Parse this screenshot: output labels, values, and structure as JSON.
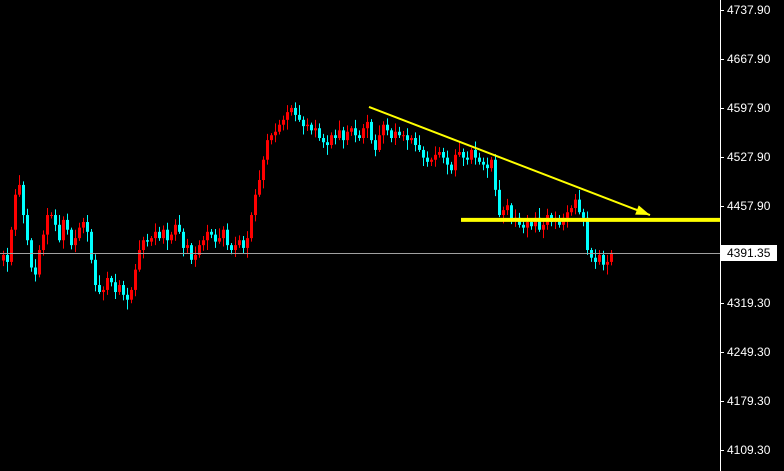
{
  "chart_data": {
    "type": "candlestick",
    "colors": {
      "background": "#000000",
      "up": "#ff0000",
      "down": "#00ffff",
      "trendline": "#ffff00",
      "price_line": "#a0a0a0",
      "axis": "#ffffff"
    },
    "ylim": [
      4079.3,
      4752.2
    ],
    "y_ticks": [
      "4737.90",
      "4667.90",
      "4597.90",
      "4527.90",
      "4457.90",
      "4319.30",
      "4249.30",
      "4179.30",
      "4109.30"
    ],
    "current_price": "4391.35",
    "candles": [
      [
        4380,
        4394,
        4372,
        4388
      ],
      [
        4388,
        4398,
        4364,
        4378
      ],
      [
        4378,
        4428,
        4373,
        4424
      ],
      [
        4424,
        4482,
        4415,
        4474
      ],
      [
        4474,
        4502,
        4471,
        4488
      ],
      [
        4488,
        4493,
        4433,
        4445
      ],
      [
        4445,
        4454,
        4402,
        4409
      ],
      [
        4409,
        4412,
        4364,
        4370
      ],
      [
        4370,
        4382,
        4350,
        4360
      ],
      [
        4360,
        4402,
        4356,
        4395
      ],
      [
        4395,
        4423,
        4387,
        4417
      ],
      [
        4417,
        4455,
        4403,
        4445
      ],
      [
        4445,
        4449,
        4440,
        4445
      ],
      [
        4445,
        4453,
        4422,
        4431
      ],
      [
        4431,
        4445,
        4406,
        4409
      ],
      [
        4409,
        4443,
        4397,
        4438
      ],
      [
        4438,
        4447,
        4417,
        4424
      ],
      [
        4424,
        4427,
        4396,
        4402
      ],
      [
        4402,
        4424,
        4392,
        4412
      ],
      [
        4412,
        4434,
        4408,
        4427
      ],
      [
        4427,
        4441,
        4419,
        4435
      ],
      [
        4435,
        4445,
        4407,
        4421
      ],
      [
        4421,
        4425,
        4376,
        4381
      ],
      [
        4381,
        4389,
        4336,
        4345
      ],
      [
        4345,
        4359,
        4332,
        4335
      ],
      [
        4335,
        4343,
        4323,
        4338
      ],
      [
        4338,
        4364,
        4331,
        4355
      ],
      [
        4355,
        4358,
        4343,
        4349
      ],
      [
        4349,
        4361,
        4325,
        4335
      ],
      [
        4335,
        4352,
        4331,
        4345
      ],
      [
        4345,
        4351,
        4323,
        4331
      ],
      [
        4331,
        4341,
        4310,
        4324
      ],
      [
        4324,
        4342,
        4319,
        4338
      ],
      [
        4338,
        4375,
        4329,
        4367
      ],
      [
        4367,
        4409,
        4364,
        4395
      ],
      [
        4395,
        4414,
        4383,
        4409
      ],
      [
        4409,
        4418,
        4400,
        4407
      ],
      [
        4407,
        4415,
        4401,
        4412
      ],
      [
        4412,
        4433,
        4402,
        4421
      ],
      [
        4421,
        4428,
        4408,
        4412
      ],
      [
        4412,
        4430,
        4404,
        4424
      ],
      [
        4424,
        4434,
        4395,
        4409
      ],
      [
        4409,
        4421,
        4404,
        4417
      ],
      [
        4417,
        4439,
        4408,
        4431
      ],
      [
        4431,
        4445,
        4418,
        4421
      ],
      [
        4421,
        4426,
        4386,
        4398
      ],
      [
        4398,
        4411,
        4391,
        4402
      ],
      [
        4402,
        4405,
        4375,
        4381
      ],
      [
        4381,
        4400,
        4371,
        4388
      ],
      [
        4388,
        4409,
        4384,
        4402
      ],
      [
        4402,
        4415,
        4394,
        4409
      ],
      [
        4409,
        4431,
        4395,
        4421
      ],
      [
        4421,
        4425,
        4412,
        4417
      ],
      [
        4417,
        4425,
        4398,
        4407
      ],
      [
        4407,
        4426,
        4404,
        4412
      ],
      [
        4412,
        4429,
        4400,
        4424
      ],
      [
        4424,
        4433,
        4395,
        4402
      ],
      [
        4402,
        4405,
        4389,
        4395
      ],
      [
        4395,
        4414,
        4385,
        4402
      ],
      [
        4402,
        4416,
        4398,
        4409
      ],
      [
        4409,
        4415,
        4390,
        4398
      ],
      [
        4398,
        4422,
        4384,
        4412
      ],
      [
        4412,
        4449,
        4407,
        4445
      ],
      [
        4445,
        4482,
        4436,
        4474
      ],
      [
        4474,
        4509,
        4471,
        4495
      ],
      [
        4495,
        4529,
        4483,
        4524
      ],
      [
        4524,
        4561,
        4517,
        4552
      ],
      [
        4552,
        4562,
        4546,
        4559
      ],
      [
        4559,
        4576,
        4549,
        4564
      ],
      [
        4564,
        4581,
        4560,
        4574
      ],
      [
        4574,
        4587,
        4566,
        4581
      ],
      [
        4581,
        4602,
        4567,
        4592
      ],
      [
        4592,
        4602,
        4587,
        4598
      ],
      [
        4598,
        4606,
        4579,
        4588
      ],
      [
        4588,
        4602,
        4578,
        4581
      ],
      [
        4581,
        4586,
        4560,
        4572
      ],
      [
        4572,
        4583,
        4565,
        4574
      ],
      [
        4574,
        4577,
        4560,
        4566
      ],
      [
        4566,
        4581,
        4556,
        4569
      ],
      [
        4569,
        4576,
        4551,
        4555
      ],
      [
        4555,
        4561,
        4541,
        4549
      ],
      [
        4549,
        4559,
        4531,
        4545
      ],
      [
        4545,
        4563,
        4540,
        4559
      ],
      [
        4559,
        4567,
        4546,
        4555
      ],
      [
        4555,
        4580,
        4552,
        4566
      ],
      [
        4566,
        4571,
        4540,
        4552
      ],
      [
        4552,
        4573,
        4545,
        4564
      ],
      [
        4564,
        4572,
        4558,
        4569
      ],
      [
        4569,
        4581,
        4549,
        4559
      ],
      [
        4559,
        4566,
        4551,
        4555
      ],
      [
        4555,
        4575,
        4547,
        4569
      ],
      [
        4569,
        4588,
        4555,
        4578
      ],
      [
        4578,
        4582,
        4547,
        4552
      ],
      [
        4552,
        4560,
        4529,
        4538
      ],
      [
        4538,
        4573,
        4535,
        4559
      ],
      [
        4559,
        4579,
        4547,
        4574
      ],
      [
        4574,
        4583,
        4559,
        4566
      ],
      [
        4566,
        4569,
        4549,
        4555
      ],
      [
        4555,
        4576,
        4545,
        4564
      ],
      [
        4564,
        4571,
        4555,
        4559
      ],
      [
        4559,
        4565,
        4551,
        4559
      ],
      [
        4559,
        4569,
        4538,
        4552
      ],
      [
        4552,
        4559,
        4547,
        4555
      ],
      [
        4555,
        4563,
        4536,
        4545
      ],
      [
        4545,
        4559,
        4535,
        4538
      ],
      [
        4538,
        4543,
        4515,
        4527
      ],
      [
        4527,
        4536,
        4514,
        4521
      ],
      [
        4521,
        4527,
        4515,
        4524
      ],
      [
        4524,
        4543,
        4514,
        4531
      ],
      [
        4531,
        4542,
        4527,
        4535
      ],
      [
        4535,
        4541,
        4519,
        4527
      ],
      [
        4527,
        4537,
        4503,
        4517
      ],
      [
        4517,
        4521,
        4504,
        4509
      ],
      [
        4509,
        4539,
        4500,
        4531
      ],
      [
        4531,
        4549,
        4528,
        4535
      ],
      [
        4535,
        4540,
        4515,
        4527
      ],
      [
        4527,
        4536,
        4517,
        4524
      ],
      [
        4524,
        4541,
        4518,
        4538
      ],
      [
        4538,
        4550,
        4517,
        4527
      ],
      [
        4527,
        4534,
        4517,
        4521
      ],
      [
        4521,
        4527,
        4509,
        4517
      ],
      [
        4517,
        4527,
        4498,
        4512
      ],
      [
        4512,
        4528,
        4507,
        4524
      ],
      [
        4524,
        4532,
        4472,
        4481
      ],
      [
        4481,
        4495,
        4442,
        4445
      ],
      [
        4445,
        4457,
        4433,
        4452
      ],
      [
        4452,
        4468,
        4445,
        4459
      ],
      [
        4459,
        4462,
        4432,
        4438
      ],
      [
        4438,
        4453,
        4428,
        4441
      ],
      [
        4441,
        4448,
        4427,
        4431
      ],
      [
        4431,
        4437,
        4419,
        4427
      ],
      [
        4427,
        4445,
        4413,
        4435
      ],
      [
        4435,
        4439,
        4424,
        4429
      ],
      [
        4429,
        4449,
        4420,
        4441
      ],
      [
        4441,
        4455,
        4421,
        4424
      ],
      [
        4424,
        4436,
        4412,
        4431
      ],
      [
        4431,
        4454,
        4424,
        4445
      ],
      [
        4445,
        4448,
        4429,
        4435
      ],
      [
        4435,
        4450,
        4425,
        4438
      ],
      [
        4438,
        4445,
        4427,
        4431
      ],
      [
        4431,
        4447,
        4423,
        4441
      ],
      [
        4441,
        4459,
        4427,
        4449
      ],
      [
        4449,
        4459,
        4444,
        4455
      ],
      [
        4455,
        4475,
        4446,
        4467
      ],
      [
        4467,
        4481,
        4446,
        4449
      ],
      [
        4449,
        4454,
        4429,
        4441
      ],
      [
        4441,
        4450,
        4388,
        4395
      ],
      [
        4395,
        4398,
        4378,
        4384
      ],
      [
        4384,
        4396,
        4368,
        4378
      ],
      [
        4378,
        4395,
        4374,
        4388
      ],
      [
        4388,
        4394,
        4366,
        4374
      ],
      [
        4374,
        4388,
        4360,
        4378
      ],
      [
        4378,
        4395,
        4373,
        4391
      ]
    ],
    "annotations": [
      {
        "type": "trendline-arrow",
        "from": {
          "bar": 91.5,
          "price": 4599.4
        },
        "to": {
          "bar": 161.75,
          "price": 4445.0
        }
      },
      {
        "type": "horizontal-line",
        "from_bar": 114.5,
        "price": 4438.0
      }
    ]
  }
}
